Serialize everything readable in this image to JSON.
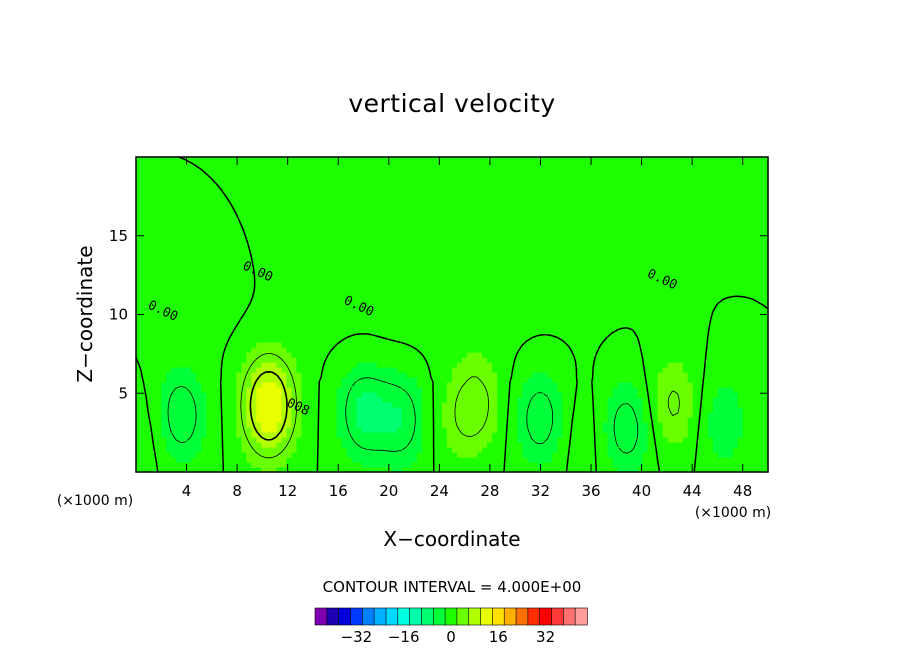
{
  "chart_data": {
    "type": "heatmap",
    "title": "vertical velocity",
    "xlabel": "X−coordinate",
    "ylabel": "Z−coordinate",
    "x_unit_left": "(×1000 m)",
    "x_unit_right": "(×1000 m)",
    "xlim": [
      0,
      50
    ],
    "ylim": [
      0,
      20
    ],
    "x_ticks": [
      4,
      8,
      12,
      16,
      20,
      24,
      28,
      32,
      36,
      40,
      44,
      48
    ],
    "y_ticks": [
      5,
      10,
      15
    ],
    "x_tick_labels": [
      "4",
      "8",
      "12",
      "16",
      "20",
      "24",
      "28",
      "32",
      "36",
      "40",
      "44",
      "48"
    ],
    "y_tick_labels": [
      "5",
      "10",
      "15"
    ],
    "contour_interval_text": "CONTOUR INTERVAL = 4.000E+00",
    "contour_interval": 4,
    "contour_labels": [
      {
        "text": "0.00",
        "x": 2,
        "y": 10
      },
      {
        "text": "0.00",
        "x": 9.5,
        "y": 12.5
      },
      {
        "text": "0.00",
        "x": 17.5,
        "y": 10.3
      },
      {
        "text": "0.00",
        "x": 41.5,
        "y": 12.0
      },
      {
        "text": "008",
        "x": 12.7,
        "y": 3.9
      }
    ],
    "colorbar": {
      "tick_labels": [
        "−32",
        "−16",
        "0",
        "16",
        "32"
      ],
      "tick_values": [
        -32,
        -16,
        0,
        16,
        32
      ],
      "colors": [
        "#7f00b2",
        "#1f00b2",
        "#0000d8",
        "#0038ff",
        "#0080ff",
        "#00b0ff",
        "#00d8ff",
        "#00ffe0",
        "#00ffa8",
        "#00ff70",
        "#00ff38",
        "#1eff00",
        "#6aff00",
        "#b2ff00",
        "#e8ff00",
        "#ffe000",
        "#ffb000",
        "#ff7000",
        "#ff2e00",
        "#ff0000",
        "#ff3838",
        "#ff7070",
        "#ff9c9c"
      ],
      "levels": [
        -44,
        -40,
        -36,
        -32,
        -28,
        -24,
        -20,
        -16,
        -12,
        -8,
        -4,
        0,
        4,
        8,
        12,
        16,
        20,
        24,
        28,
        32,
        36,
        40,
        44
      ]
    },
    "field_cells": [
      {
        "x": 10.5,
        "y": 4.2,
        "w": 13.5
      },
      {
        "x": 27.0,
        "y": 4.4,
        "w": 4.5
      },
      {
        "x": 25.4,
        "y": 3.2,
        "w": 2.2
      },
      {
        "x": 42.5,
        "y": 4.3,
        "w": 4.5
      },
      {
        "x": 3.5,
        "y": 3.6,
        "w": -6.0
      },
      {
        "x": 18.0,
        "y": 3.8,
        "w": -6.5
      },
      {
        "x": 21.0,
        "y": 3.3,
        "w": -5.5
      },
      {
        "x": 32.0,
        "y": 3.4,
        "w": -5.5
      },
      {
        "x": 38.8,
        "y": 2.8,
        "w": -5.5
      },
      {
        "x": 46.5,
        "y": 3.2,
        "w": -3.5
      },
      {
        "x": 1.0,
        "y": 2.5,
        "w": 1.5
      },
      {
        "x": 35.3,
        "y": 2.4,
        "w": 1.5
      }
    ],
    "grid": false,
    "legend": "colorbar-bottom"
  }
}
